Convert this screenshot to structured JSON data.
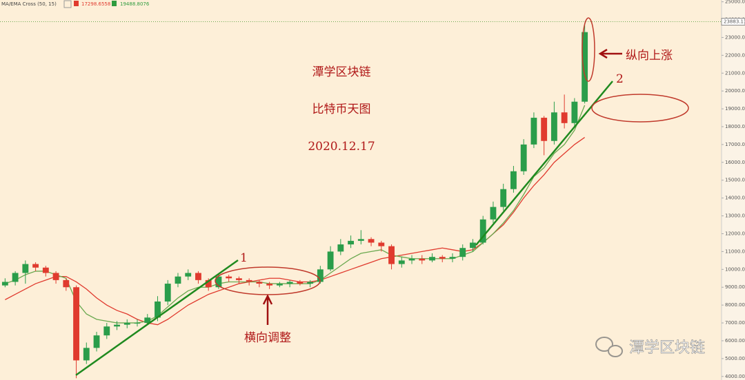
{
  "chart_data": {
    "type": "candlestick",
    "indicator": {
      "label": "MA/EMA Cross (50, 15)",
      "values": [
        17298.6558,
        19488.8076
      ],
      "colors": [
        "#e03a2e",
        "#2e9b3e"
      ]
    },
    "title_lines": [
      "潭学区块链",
      "比特币天图",
      "2020.12.17"
    ],
    "annotations": {
      "vertical": "纵向上涨",
      "horizontal": "横向调整",
      "point1": "1",
      "point2": "2"
    },
    "watermark": "潭学区块链",
    "last_price": 23883.11,
    "ylim": [
      3800,
      25100
    ],
    "yticks": [
      {
        "value": 4000,
        "label": "4000.00"
      },
      {
        "value": 5000,
        "label": "5000.00"
      },
      {
        "value": 6000,
        "label": "6000.00"
      },
      {
        "value": 7000,
        "label": "7000.00"
      },
      {
        "value": 8000,
        "label": "8000.00"
      },
      {
        "value": 9000,
        "label": "9000.00"
      },
      {
        "value": 10000,
        "label": "10000.00"
      },
      {
        "value": 11000,
        "label": "11000.00"
      },
      {
        "value": 12000,
        "label": "12000.00"
      },
      {
        "value": 13000,
        "label": "13000.00"
      },
      {
        "value": 14000,
        "label": "14000.00"
      },
      {
        "value": 15000,
        "label": "15000.00"
      },
      {
        "value": 16000,
        "label": "16000.00"
      },
      {
        "value": 17000,
        "label": "17000.00"
      },
      {
        "value": 18000,
        "label": "18000.00"
      },
      {
        "value": 19000,
        "label": "19000.00"
      },
      {
        "value": 20000,
        "label": "20000.00"
      },
      {
        "value": 21000,
        "label": "21000.00"
      },
      {
        "value": 22000,
        "label": "22000.00"
      },
      {
        "value": 23000,
        "label": "23000.00"
      },
      {
        "value": 24000,
        "label": "24000.00"
      },
      {
        "value": 25000,
        "label": "25000.00"
      }
    ],
    "up_color": "#2a9d4a",
    "down_color": "#e03a2e",
    "open": [
      9100,
      9300,
      9800,
      10300,
      10100,
      9800,
      9400,
      9000,
      4900,
      5600,
      6300,
      6800,
      6900,
      7000,
      7000,
      7300,
      8200,
      9200,
      9600,
      9800,
      9400,
      9000,
      9600,
      9500,
      9400,
      9300,
      9200,
      9100,
      9200,
      9300,
      9200,
      9300,
      10000,
      11000,
      11400,
      11600,
      11700,
      11500,
      11300,
      10300,
      10500,
      10600,
      10500,
      10700,
      10600,
      10700,
      11200,
      11500,
      12800,
      13500,
      14500,
      15500,
      17000,
      18500,
      17200,
      18800,
      18200,
      19400
    ],
    "high": [
      9500,
      9900,
      10500,
      10400,
      10200,
      9900,
      9500,
      9100,
      5900,
      6500,
      7000,
      7100,
      7200,
      7200,
      7500,
      8500,
      9400,
      9800,
      10000,
      9900,
      9500,
      9700,
      9700,
      9600,
      9500,
      9400,
      9300,
      9300,
      9400,
      9400,
      9400,
      10200,
      11300,
      11700,
      11900,
      12200,
      11800,
      11600,
      11400,
      10700,
      10800,
      10800,
      10900,
      10800,
      10900,
      11400,
      11700,
      13000,
      13800,
      14800,
      15800,
      17300,
      18800,
      18600,
      19400,
      19800,
      19600,
      23800
    ],
    "low": [
      9000,
      9100,
      9200,
      9900,
      9600,
      9200,
      8800,
      3900,
      4700,
      5400,
      6100,
      6600,
      6700,
      6800,
      6900,
      7100,
      8000,
      9000,
      9400,
      9200,
      8800,
      8900,
      9300,
      9200,
      9100,
      9000,
      8900,
      9000,
      9000,
      9100,
      9000,
      9200,
      9900,
      10800,
      11200,
      11400,
      11300,
      11000,
      10000,
      10100,
      10300,
      10300,
      10400,
      10400,
      10400,
      10500,
      11000,
      11400,
      12600,
      13300,
      14300,
      15300,
      16800,
      16400,
      17000,
      17900,
      18000,
      19300
    ],
    "close": [
      9300,
      9800,
      10300,
      10100,
      9800,
      9400,
      9000,
      4900,
      5600,
      6300,
      6800,
      6900,
      7000,
      7000,
      7300,
      8200,
      9200,
      9600,
      9800,
      9400,
      9000,
      9600,
      9500,
      9400,
      9300,
      9200,
      9100,
      9200,
      9300,
      9200,
      9300,
      10000,
      11000,
      11400,
      11600,
      11700,
      11500,
      11300,
      10300,
      10500,
      10600,
      10500,
      10700,
      10600,
      10700,
      11200,
      11500,
      12800,
      13500,
      14500,
      15500,
      17000,
      18500,
      17200,
      18800,
      18200,
      19400,
      23300
    ],
    "lines": [
      {
        "color": "#e03a2e",
        "values": [
          8300,
          8600,
          8900,
          9200,
          9400,
          9600,
          9600,
          9300,
          8900,
          8400,
          8000,
          7700,
          7500,
          7200,
          7000,
          6900,
          7200,
          7600,
          8000,
          8300,
          8600,
          8800,
          9000,
          9200,
          9300,
          9400,
          9500,
          9500,
          9400,
          9300,
          9300,
          9400,
          9600,
          9800,
          10000,
          10200,
          10400,
          10600,
          10700,
          10800,
          10900,
          11000,
          11100,
          11200,
          11100,
          11000,
          11100,
          11500,
          12000,
          12500,
          13200,
          14000,
          14700,
          15300,
          16000,
          16500,
          17000,
          17400
        ]
      },
      {
        "color": "#6aa84f",
        "values": [
          9200,
          9400,
          9700,
          9900,
          9900,
          9700,
          9500,
          8200,
          7500,
          7200,
          7100,
          7000,
          7000,
          7000,
          7100,
          7400,
          7900,
          8400,
          8800,
          9000,
          9000,
          9200,
          9300,
          9300,
          9300,
          9300,
          9200,
          9200,
          9200,
          9200,
          9200,
          9400,
          9800,
          10200,
          10600,
          10900,
          11000,
          11100,
          10800,
          10700,
          10600,
          10600,
          10600,
          10600,
          10600,
          10800,
          11000,
          11500,
          12000,
          12600,
          13300,
          14200,
          15200,
          15700,
          16500,
          17000,
          17800,
          19200
        ]
      }
    ]
  }
}
